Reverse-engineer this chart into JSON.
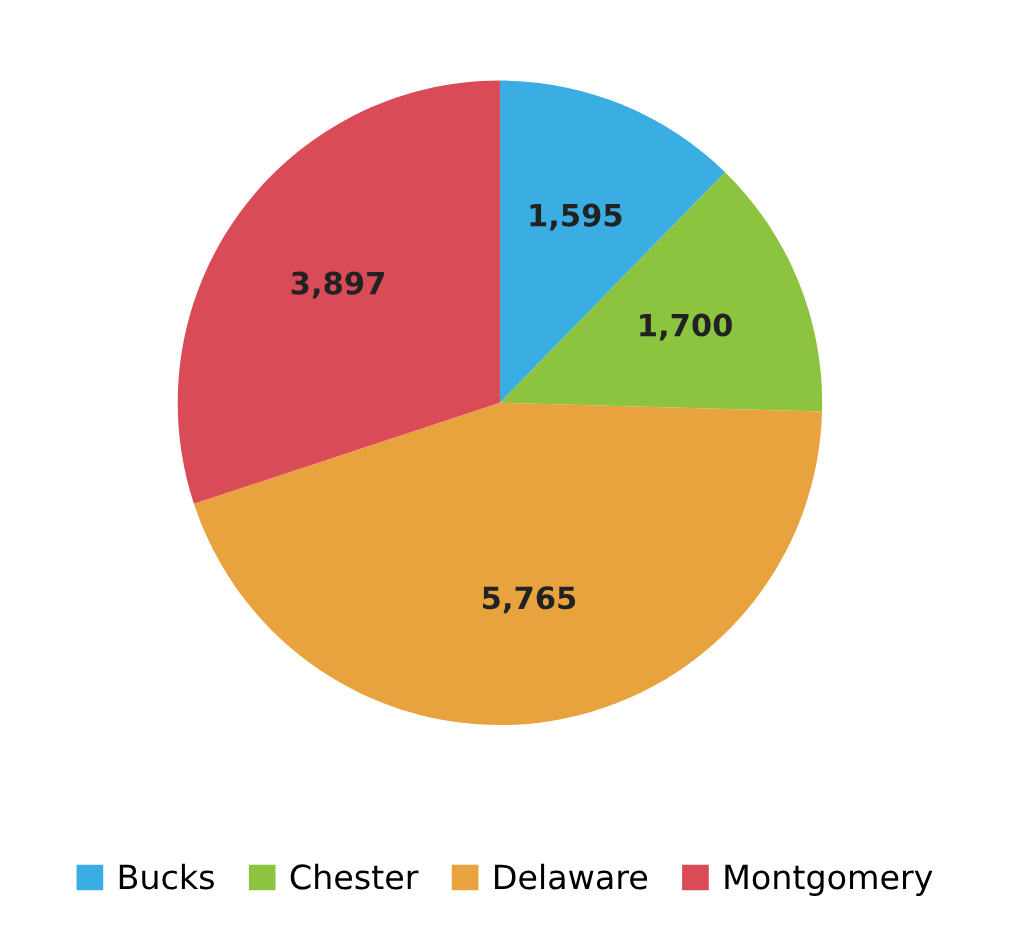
{
  "chart_data": {
    "type": "pie",
    "categories": [
      "Bucks",
      "Chester",
      "Delaware",
      "Montgomery"
    ],
    "values": [
      1595,
      1700,
      5765,
      3897
    ],
    "colors": [
      "#3aaee2",
      "#8cc43f",
      "#e8a33e",
      "#d94b57"
    ],
    "value_labels": [
      "1,595",
      "1,700",
      "5,765",
      "3,897"
    ],
    "legend": "bottom"
  }
}
